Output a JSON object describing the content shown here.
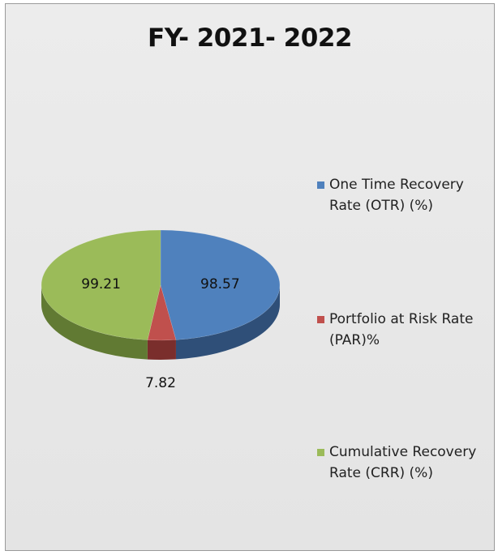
{
  "chart_data": {
    "type": "pie",
    "title": "FY- 2021- 2022",
    "legend_position": "right",
    "slices": [
      {
        "label": "One Time Recovery Rate (OTR) (%)",
        "value": 98.57,
        "color": "#4f81bd",
        "side_color": "#2f4f78"
      },
      {
        "label": "Portfolio at Risk Rate (PAR)%",
        "value": 7.82,
        "color": "#c0504d",
        "side_color": "#7a2e2c"
      },
      {
        "label": "Cumulative Recovery Rate (CRR) (%)",
        "value": 99.21,
        "color": "#9bbb59",
        "side_color": "#617a33"
      }
    ]
  }
}
